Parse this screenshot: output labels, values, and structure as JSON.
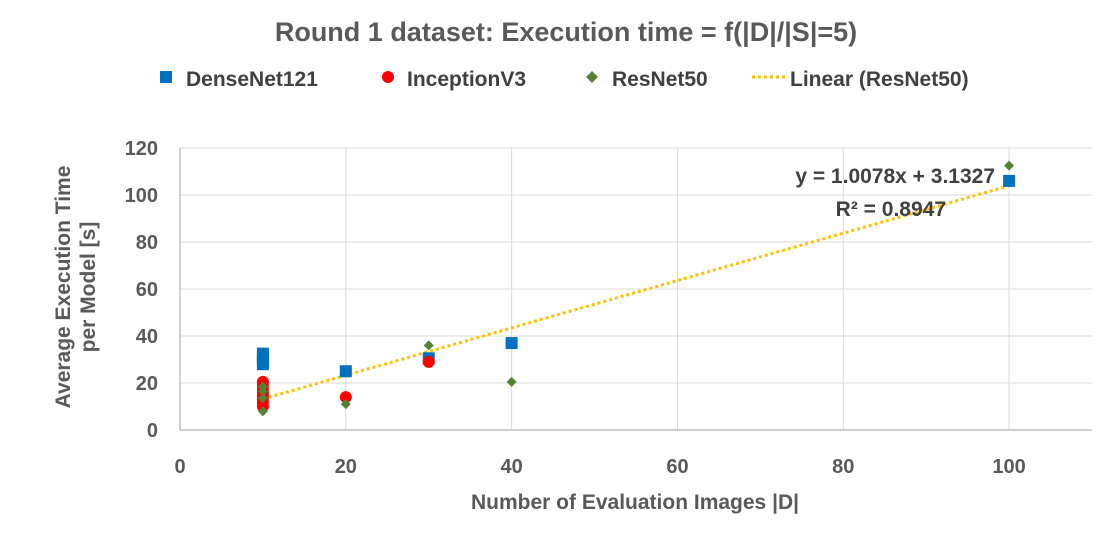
{
  "chart_data": {
    "type": "scatter",
    "title": "Round 1 dataset: Execution time = f(|D|/|S|=5)",
    "xlabel": "Number of Evaluation Images |D|",
    "ylabel_line1": "Average Execution Time",
    "ylabel_line2": "per Model [s]",
    "xlim": [
      0,
      110
    ],
    "ylim": [
      0,
      120
    ],
    "xticks": [
      0,
      20,
      40,
      60,
      80,
      100
    ],
    "yticks": [
      0,
      20,
      40,
      60,
      80,
      100,
      120
    ],
    "gridlines": "vertical and horizontal",
    "legend_position": "top",
    "series": [
      {
        "name": "DenseNet121",
        "marker": "square",
        "color": "#0070C0",
        "points": [
          [
            10,
            28
          ],
          [
            10,
            29.5
          ],
          [
            10,
            31
          ],
          [
            10,
            32.5
          ],
          [
            20,
            25
          ],
          [
            30,
            30.5
          ],
          [
            40,
            37
          ],
          [
            100,
            106
          ]
        ]
      },
      {
        "name": "InceptionV3",
        "marker": "circle",
        "color": "#FF0000",
        "points": [
          [
            10,
            10
          ],
          [
            10,
            11.5
          ],
          [
            10,
            13
          ],
          [
            10,
            14.5
          ],
          [
            10,
            16
          ],
          [
            10,
            17.5
          ],
          [
            10,
            19
          ],
          [
            10,
            20.5
          ],
          [
            20,
            14
          ],
          [
            30,
            29
          ]
        ]
      },
      {
        "name": "ResNet50",
        "marker": "diamond",
        "color": "#548235",
        "points": [
          [
            10,
            8
          ],
          [
            10,
            13.5
          ],
          [
            10,
            16.5
          ],
          [
            10,
            18.5
          ],
          [
            20,
            11
          ],
          [
            30,
            36
          ],
          [
            40,
            20.5
          ],
          [
            100,
            112.5
          ]
        ]
      }
    ],
    "trendline": {
      "name": "Linear (ResNet50)",
      "color": "#FFC000",
      "slope": 1.0078,
      "intercept": 3.1327,
      "x_range": [
        10,
        100
      ],
      "equation": "y = 1.0078x + 3.1327",
      "r2_label": "R² = 0.8947"
    }
  }
}
